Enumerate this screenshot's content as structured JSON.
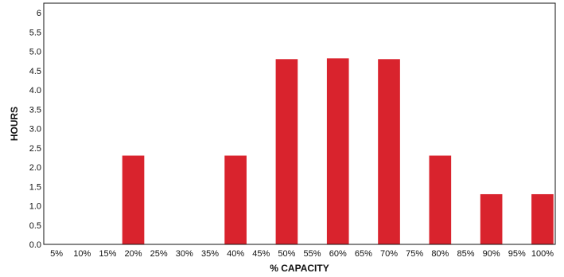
{
  "chart_data": {
    "type": "bar",
    "title": "",
    "xlabel": "% CAPACITY",
    "ylabel": "HOURS",
    "categories": [
      "5%",
      "10%",
      "15%",
      "20%",
      "25%",
      "30%",
      "35%",
      "40%",
      "45%",
      "50%",
      "55%",
      "60%",
      "65%",
      "70%",
      "75%",
      "80%",
      "85%",
      "90%",
      "95%",
      "100%"
    ],
    "values": [
      0,
      0,
      0,
      2.3,
      0,
      0,
      0,
      2.3,
      0,
      4.8,
      0,
      4.82,
      0,
      4.8,
      0,
      2.3,
      0,
      1.3,
      0,
      1.3
    ],
    "ylim": [
      0,
      6.25
    ],
    "yticks": [
      "0.0",
      "0.5",
      "1.0",
      "1.5",
      "2.0",
      "2.5",
      "3.0",
      "3.5",
      "4.0",
      "4.5",
      "5.0",
      "5.5",
      "6"
    ],
    "ytick_values": [
      0,
      0.5,
      1.0,
      1.5,
      2.0,
      2.5,
      3.0,
      3.5,
      4.0,
      4.5,
      5.0,
      5.5,
      6
    ],
    "grid": false,
    "legend": "none",
    "bar_color": "#d9232d",
    "axis_color": "#111111"
  }
}
